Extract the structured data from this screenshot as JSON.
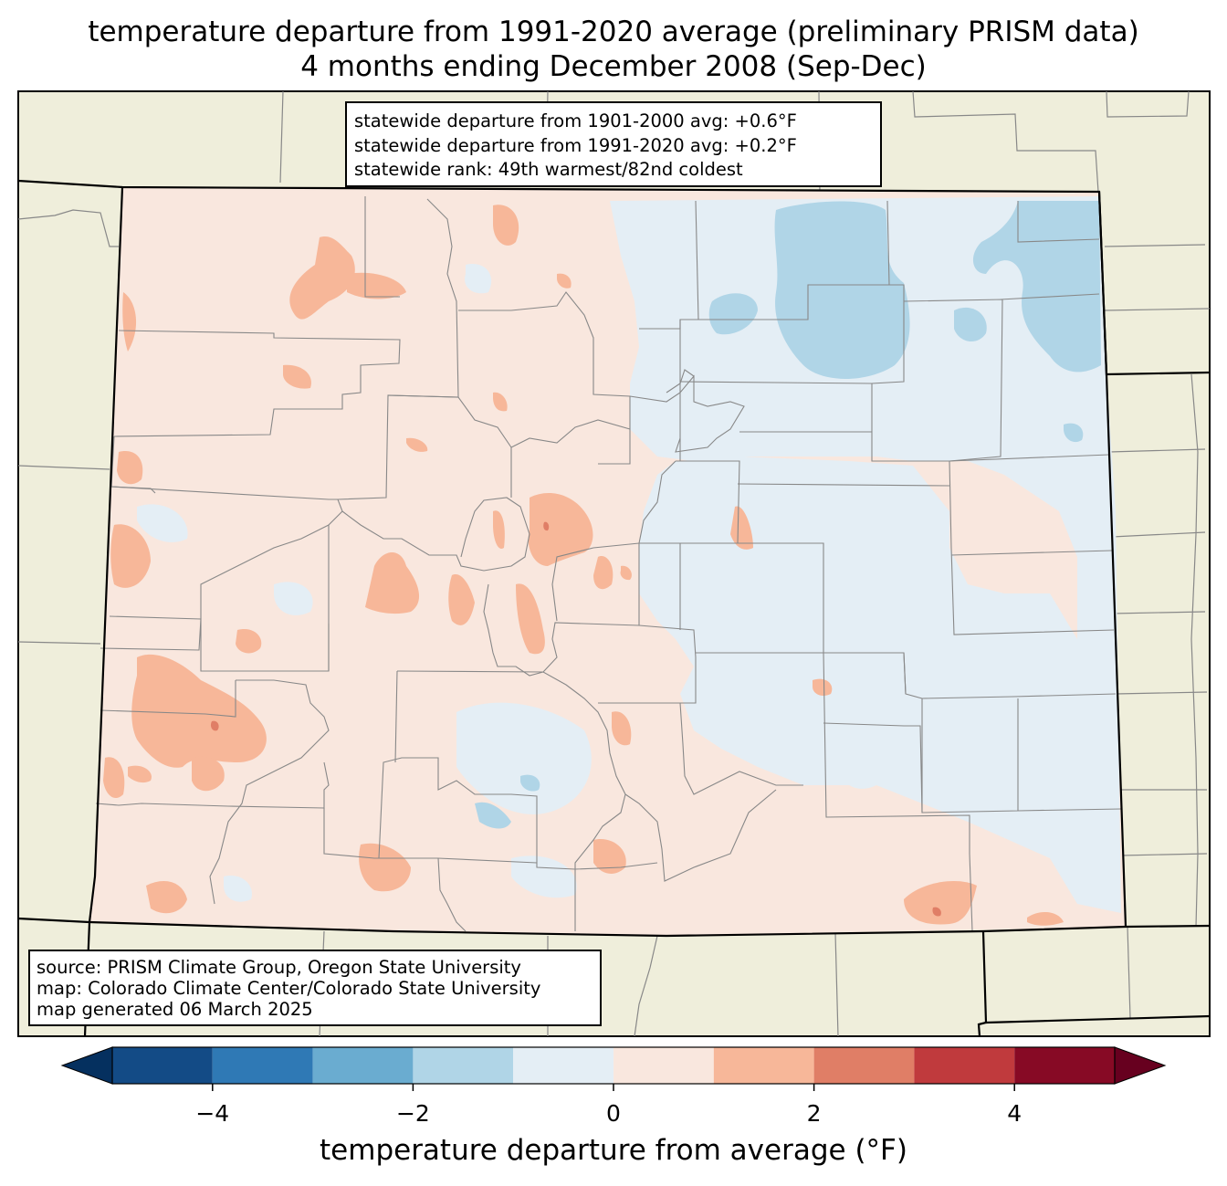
{
  "title": {
    "line1": "temperature departure from 1991-2020 average (preliminary PRISM data)",
    "line2": "4 months ending December 2008 (Sep-Dec)"
  },
  "stats": {
    "line1": "statewide departure from 1901-2000 avg: +0.6°F",
    "line2": "statewide departure from 1991-2020 avg: +0.2°F",
    "line3": "statewide rank: 49th warmest/82nd coldest"
  },
  "source": {
    "line1": "source: PRISM Climate Group, Oregon State University",
    "line2": "map: Colorado Climate Center/Colorado State University",
    "line3": "map generated 06 March 2025"
  },
  "colorbar": {
    "label": "temperature departure from average (°F)",
    "ticks": [
      "−4",
      "−2",
      "0",
      "2",
      "4"
    ],
    "tick_values": [
      -4,
      -2,
      0,
      2,
      4
    ],
    "bins": [
      {
        "range": [
          -5,
          -4
        ],
        "color": "#134b86"
      },
      {
        "range": [
          -4,
          -3
        ],
        "color": "#2f79b5"
      },
      {
        "range": [
          -3,
          -2
        ],
        "color": "#6aacd0"
      },
      {
        "range": [
          -2,
          -1
        ],
        "color": "#b0d5e7"
      },
      {
        "range": [
          -1,
          0
        ],
        "color": "#e4eef5"
      },
      {
        "range": [
          0,
          1
        ],
        "color": "#f9e7de"
      },
      {
        "range": [
          1,
          2
        ],
        "color": "#f7b799"
      },
      {
        "range": [
          2,
          3
        ],
        "color": "#e07e66"
      },
      {
        "range": [
          3,
          4
        ],
        "color": "#c03a3d"
      },
      {
        "range": [
          4,
          5
        ],
        "color": "#870a25"
      }
    ],
    "under_color": "#05305f",
    "over_color": "#67001f"
  },
  "colors": {
    "land_background": "#efeedb",
    "county_line": "#888888",
    "state_line": "#000000"
  }
}
